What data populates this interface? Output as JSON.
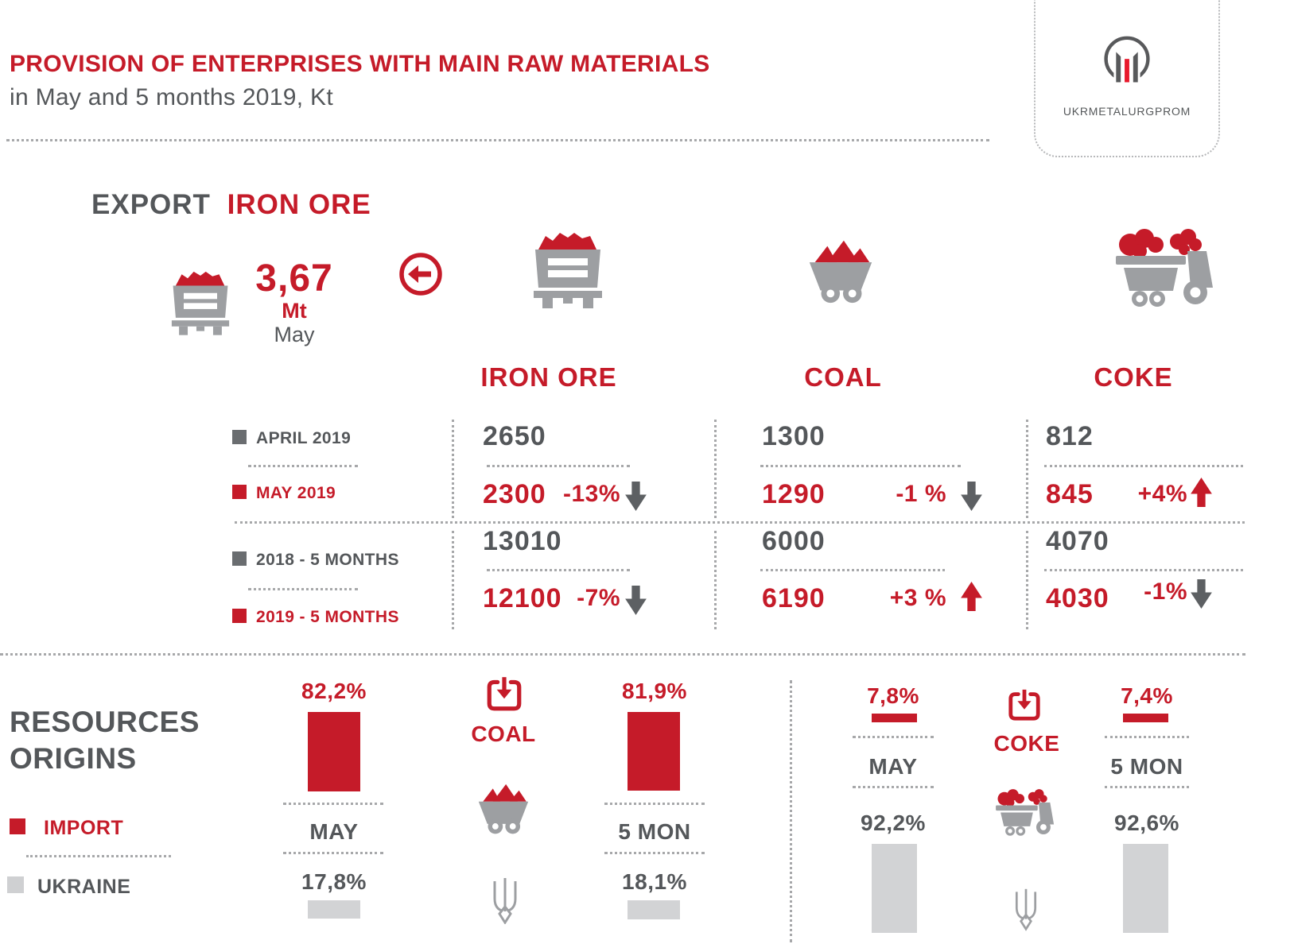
{
  "colors": {
    "red": "#c51b29",
    "dark_gray": "#54575a",
    "icon_gray": "#9d9fa2",
    "light_gray": "#d2d3d5"
  },
  "header": {
    "title": "PROVISION OF ENTERPRISES WITH MAIN RAW MATERIALS",
    "subtitle": "in May and 5 months 2019, Kt",
    "logo_text": "UKRMETALURGPROM"
  },
  "export_callout": {
    "label_export": "EXPORT",
    "label_material": "IRON ORE",
    "value": "3,67",
    "unit": "Mt",
    "period": "May"
  },
  "table": {
    "row_labels": [
      {
        "label": "APRIL 2019",
        "color": "gray"
      },
      {
        "label": "MAY 2019",
        "color": "red"
      },
      {
        "label": "2018 - 5 MONTHS",
        "color": "gray"
      },
      {
        "label": "2019 - 5 MONTHS",
        "color": "red"
      }
    ],
    "columns": [
      {
        "header": "IRON ORE",
        "april": "2650",
        "may": "2300",
        "may_delta": "-13%",
        "may_dir": "down",
        "m5_2018": "13010",
        "m5_2019": "12100",
        "m5_delta": "-7%",
        "m5_dir": "down"
      },
      {
        "header": "COAL",
        "april": "1300",
        "may": "1290",
        "may_delta": "-1 %",
        "may_dir": "down",
        "m5_2018": "6000",
        "m5_2019": "6190",
        "m5_delta": "+3 %",
        "m5_dir": "up"
      },
      {
        "header": "COKE",
        "april": "812",
        "may": "845",
        "may_delta": "+4%",
        "may_dir": "up",
        "m5_2018": "4070",
        "m5_2019": "4030",
        "m5_delta": "-1%",
        "m5_dir": "down"
      }
    ]
  },
  "origins": {
    "heading_line1": "RESOURCES",
    "heading_line2": "ORIGINS",
    "legend_import": "IMPORT",
    "legend_ukraine": "UKRAINE",
    "coal": {
      "material": "COAL",
      "may": {
        "label": "MAY",
        "import_pct": "82,2%",
        "ukraine_pct": "17,8%",
        "import_val": 82.2,
        "ukraine_val": 17.8
      },
      "mon5": {
        "label": "5 MON",
        "import_pct": "81,9%",
        "ukraine_pct": "18,1%",
        "import_val": 81.9,
        "ukraine_val": 18.1
      }
    },
    "coke": {
      "material": "COKE",
      "may": {
        "label": "MAY",
        "import_pct": "7,8%",
        "ukraine_pct": "92,2%",
        "import_val": 7.8,
        "ukraine_val": 92.2
      },
      "mon5": {
        "label": "5 MON",
        "import_pct": "7,4%",
        "ukraine_pct": "92,6%",
        "import_val": 7.4,
        "ukraine_val": 92.6
      }
    }
  },
  "chart_data": [
    {
      "type": "table",
      "title": "PROVISION OF ENTERPRISES WITH MAIN RAW MATERIALS in May and 5 months 2019, Kt",
      "categories": [
        "IRON ORE",
        "COAL",
        "COKE"
      ],
      "series": [
        {
          "name": "APRIL 2019",
          "values": [
            2650,
            1300,
            812
          ]
        },
        {
          "name": "MAY 2019",
          "values": [
            2300,
            1290,
            845
          ],
          "change_vs_april": [
            "-13%",
            "-1%",
            "+4%"
          ],
          "direction": [
            "down",
            "down",
            "up"
          ]
        },
        {
          "name": "2018 - 5 MONTHS",
          "values": [
            13010,
            6000,
            4070
          ]
        },
        {
          "name": "2019 - 5 MONTHS",
          "values": [
            12100,
            6190,
            4030
          ],
          "change_vs_2018": [
            "-7%",
            "+3%",
            "-1%"
          ],
          "direction": [
            "down",
            "up",
            "down"
          ]
        }
      ]
    },
    {
      "type": "bar",
      "title": "RESOURCES ORIGINS",
      "unit": "%",
      "legend": [
        "IMPORT",
        "UKRAINE"
      ],
      "groups": [
        {
          "material": "COAL",
          "categories": [
            "MAY",
            "5 MON"
          ],
          "series": [
            {
              "name": "IMPORT",
              "values": [
                82.2,
                81.9
              ]
            },
            {
              "name": "UKRAINE",
              "values": [
                17.8,
                18.1
              ]
            }
          ]
        },
        {
          "material": "COKE",
          "categories": [
            "MAY",
            "5 MON"
          ],
          "series": [
            {
              "name": "IMPORT",
              "values": [
                7.8,
                7.4
              ]
            },
            {
              "name": "UKRAINE",
              "values": [
                92.2,
                92.6
              ]
            }
          ]
        }
      ]
    },
    {
      "type": "callout",
      "title": "EXPORT IRON ORE",
      "value": 3.67,
      "unit": "Mt",
      "period": "May"
    }
  ]
}
